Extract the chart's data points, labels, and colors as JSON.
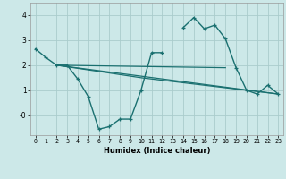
{
  "background_color": "#cce8e8",
  "grid_color": "#aacccc",
  "line_color": "#1a7070",
  "xlabel": "Humidex (Indice chaleur)",
  "xlim": [
    -0.5,
    23.5
  ],
  "ylim": [
    -0.8,
    4.5
  ],
  "yticks": [
    0,
    1,
    2,
    3,
    4
  ],
  "ytick_labels": [
    "-0",
    "1",
    "2",
    "3",
    "4"
  ],
  "xticks": [
    0,
    1,
    2,
    3,
    4,
    5,
    6,
    7,
    8,
    9,
    10,
    11,
    12,
    13,
    14,
    15,
    16,
    17,
    18,
    19,
    20,
    21,
    22,
    23
  ],
  "series0_x": [
    0,
    1,
    2,
    3,
    4,
    5,
    6,
    7,
    8,
    9,
    10,
    11,
    12,
    14,
    15,
    16,
    17,
    18,
    19,
    20,
    21,
    22,
    23
  ],
  "series0_y": [
    2.65,
    2.3,
    2.0,
    2.0,
    1.45,
    0.75,
    -0.55,
    -0.45,
    -0.15,
    -0.15,
    1.0,
    2.5,
    2.5,
    3.5,
    3.9,
    3.45,
    3.6,
    3.05,
    1.9,
    1.0,
    0.85,
    1.2,
    0.85
  ],
  "line1_x": [
    2,
    18
  ],
  "line1_y": [
    2.0,
    1.9
  ],
  "line2_x": [
    2,
    23
  ],
  "line2_y": [
    2.0,
    0.85
  ],
  "line3_x": [
    2,
    10,
    23
  ],
  "line3_y": [
    2.0,
    1.5,
    0.85
  ]
}
